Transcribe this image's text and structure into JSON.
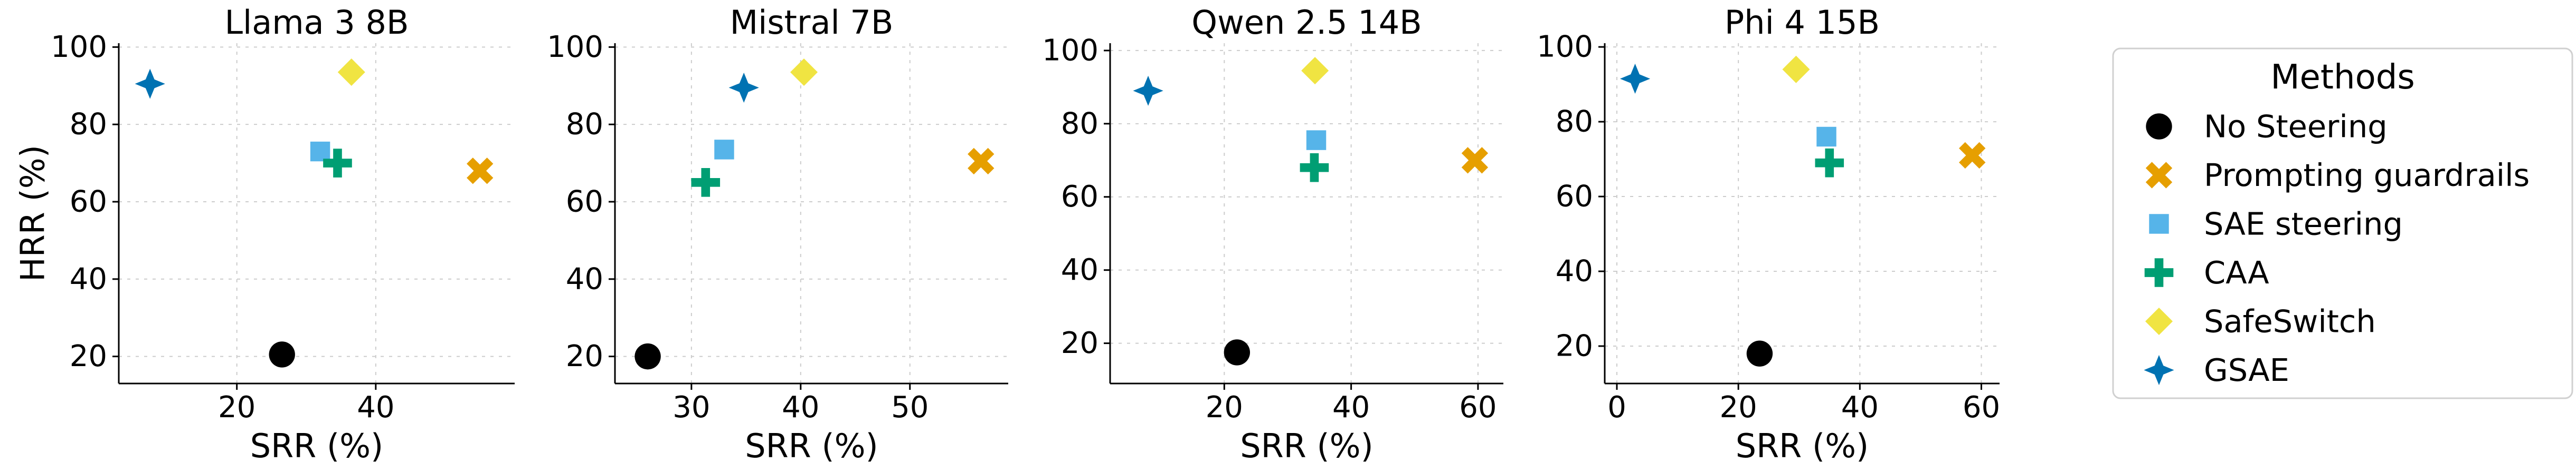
{
  "markers": {
    "No Steering": {
      "shape": "circle",
      "color": "#000000"
    },
    "Prompting guardrails": {
      "shape": "x",
      "color": "#E69F00"
    },
    "SAE steering": {
      "shape": "square",
      "color": "#56B4E9"
    },
    "CAA": {
      "shape": "plus",
      "color": "#009E73"
    },
    "SafeSwitch": {
      "shape": "diamond",
      "color": "#F0E442"
    },
    "GSAE": {
      "shape": "star4",
      "color": "#0072B2"
    }
  },
  "legend": {
    "title": "Methods",
    "placement": "right",
    "entries": [
      "No Steering",
      "Prompting guardrails",
      "SAE steering",
      "CAA",
      "SafeSwitch",
      "GSAE"
    ]
  },
  "chart_data": [
    {
      "type": "scatter",
      "title": "Llama 3 8B",
      "xlabel": "SRR (%)",
      "ylabel": "HRR (%)",
      "xlim": [
        3,
        60
      ],
      "ylim": [
        13,
        101
      ],
      "xticks": [
        20,
        40
      ],
      "yticks": [
        20,
        40,
        60,
        80,
        100
      ],
      "grid": true,
      "points": [
        {
          "method": "No Steering",
          "x": 26.5,
          "y": 20.5
        },
        {
          "method": "Prompting guardrails",
          "x": 55,
          "y": 68
        },
        {
          "method": "SAE steering",
          "x": 32,
          "y": 73
        },
        {
          "method": "CAA",
          "x": 34.5,
          "y": 70
        },
        {
          "method": "SafeSwitch",
          "x": 36.5,
          "y": 93.5
        },
        {
          "method": "GSAE",
          "x": 7.5,
          "y": 90.5
        }
      ]
    },
    {
      "type": "scatter",
      "title": "Mistral 7B",
      "xlabel": "SRR (%)",
      "ylabel": "",
      "xlim": [
        23,
        59
      ],
      "ylim": [
        13,
        101
      ],
      "xticks": [
        30,
        40,
        50
      ],
      "yticks": [
        20,
        40,
        60,
        80,
        100
      ],
      "grid": true,
      "points": [
        {
          "method": "No Steering",
          "x": 26,
          "y": 20
        },
        {
          "method": "Prompting guardrails",
          "x": 56.5,
          "y": 70.5
        },
        {
          "method": "SAE steering",
          "x": 33,
          "y": 73.5
        },
        {
          "method": "CAA",
          "x": 31.3,
          "y": 65
        },
        {
          "method": "SafeSwitch",
          "x": 40.3,
          "y": 93.5
        },
        {
          "method": "GSAE",
          "x": 34.8,
          "y": 89.5
        }
      ]
    },
    {
      "type": "scatter",
      "title": "Qwen 2.5 14B",
      "xlabel": "SRR (%)",
      "ylabel": "",
      "xlim": [
        2,
        64
      ],
      "ylim": [
        9,
        102
      ],
      "xticks": [
        20,
        40,
        60
      ],
      "yticks": [
        20,
        40,
        60,
        80,
        100
      ],
      "grid": true,
      "points": [
        {
          "method": "No Steering",
          "x": 22,
          "y": 17.5
        },
        {
          "method": "Prompting guardrails",
          "x": 59.5,
          "y": 70
        },
        {
          "method": "SAE steering",
          "x": 34.5,
          "y": 75.5
        },
        {
          "method": "CAA",
          "x": 34.2,
          "y": 68
        },
        {
          "method": "SafeSwitch",
          "x": 34.3,
          "y": 94.5
        },
        {
          "method": "GSAE",
          "x": 8,
          "y": 89
        }
      ]
    },
    {
      "type": "scatter",
      "title": "Phi 4 15B",
      "xlabel": "SRR (%)",
      "ylabel": "",
      "xlim": [
        -2,
        63
      ],
      "ylim": [
        10,
        101
      ],
      "xticks": [
        0,
        20,
        40,
        60
      ],
      "yticks": [
        20,
        40,
        60,
        80,
        100
      ],
      "grid": true,
      "points": [
        {
          "method": "No Steering",
          "x": 23.5,
          "y": 18
        },
        {
          "method": "Prompting guardrails",
          "x": 58.5,
          "y": 71
        },
        {
          "method": "SAE steering",
          "x": 34.5,
          "y": 76
        },
        {
          "method": "CAA",
          "x": 35,
          "y": 69
        },
        {
          "method": "SafeSwitch",
          "x": 29.5,
          "y": 94
        },
        {
          "method": "GSAE",
          "x": 3,
          "y": 91.5
        }
      ]
    }
  ]
}
